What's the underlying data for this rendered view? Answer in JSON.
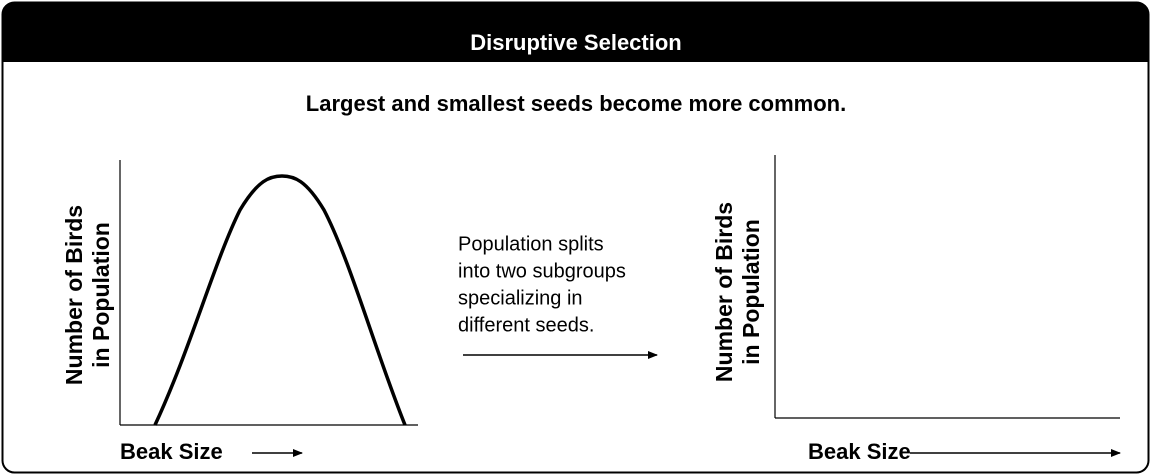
{
  "header": {
    "title": "Disruptive Selection"
  },
  "subtitle": "Largest and smallest seeds become more common.",
  "left_graph": {
    "y_label": [
      "Number of Birds",
      "in Population"
    ],
    "x_label": "Beak Size"
  },
  "middle_text": [
    "Population splits",
    "into two subgroups",
    "specializing in",
    "different seeds."
  ],
  "right_graph": {
    "y_label": [
      "Number of Birds",
      "in Population"
    ],
    "x_label": "Beak Size"
  }
}
